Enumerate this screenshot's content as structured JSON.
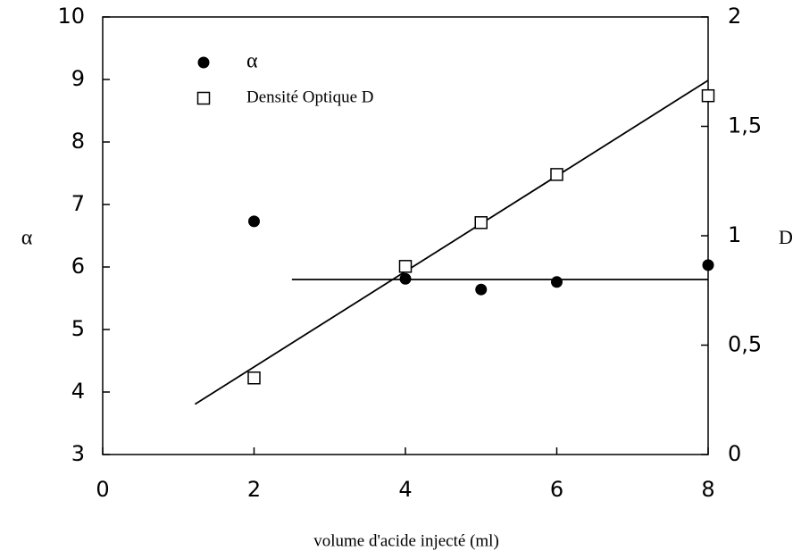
{
  "chart_data": {
    "type": "scatter",
    "xlabel": "volume d'acide injecté (ml)",
    "ylabel": "α",
    "y2label": "D",
    "x": [
      2,
      4,
      5,
      6,
      8
    ],
    "series": [
      {
        "name": "α",
        "marker": "filled-circle",
        "color": "#000000",
        "axis": "y",
        "values": [
          6.73,
          5.81,
          5.64,
          5.76,
          6.03
        ]
      },
      {
        "name": "Densité Optique D",
        "marker": "open-square",
        "color": "#000000",
        "axis": "y2",
        "values": [
          0.35,
          0.86,
          1.06,
          1.28,
          1.64
        ]
      }
    ],
    "lines": [
      {
        "axis": "y",
        "x": [
          2.5,
          8
        ],
        "values": [
          5.8,
          5.8
        ]
      },
      {
        "axis": "y2",
        "x": [
          1.22,
          8
        ],
        "values": [
          0.23,
          1.71
        ]
      }
    ],
    "xlim": [
      0,
      8
    ],
    "xticks": [
      0,
      2,
      4,
      6,
      8
    ],
    "ylim": [
      3,
      10
    ],
    "yticks": [
      3,
      4,
      5,
      6,
      7,
      8,
      9,
      10
    ],
    "y2lim": [
      0,
      2
    ],
    "y2ticks": [
      0,
      {
        "value": 0.5,
        "label": "0,5"
      },
      1,
      {
        "value": 1.5,
        "label": "1,5"
      },
      2
    ],
    "legend": "upper left"
  }
}
